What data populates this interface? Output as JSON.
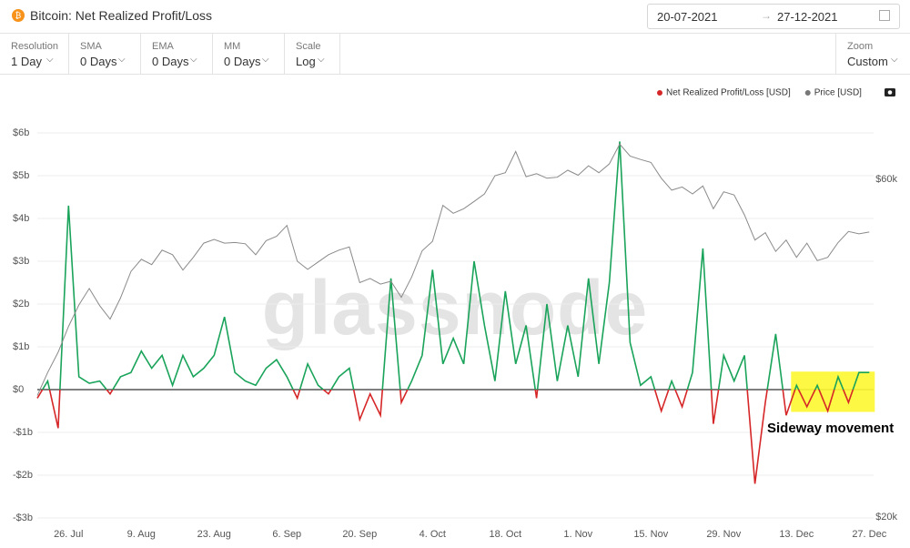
{
  "header": {
    "title": "Bitcoin: Net Realized Profit/Loss",
    "date_from": "20-07-2021",
    "date_to": "27-12-2021"
  },
  "controls": [
    {
      "label": "Resolution",
      "value": "1 Day"
    },
    {
      "label": "SMA",
      "value": "0 Days"
    },
    {
      "label": "EMA",
      "value": "0 Days"
    },
    {
      "label": "MM",
      "value": "0 Days"
    },
    {
      "label": "Scale",
      "value": "Log"
    }
  ],
  "zoom": {
    "label": "Zoom",
    "value": "Custom"
  },
  "chart_data": {
    "type": "line",
    "watermark": "glassnode",
    "annotation": "Sideway movement",
    "grid": true,
    "y2scale": "log",
    "categories": [
      null,
      null,
      null,
      "26. Jul",
      null,
      null,
      null,
      null,
      null,
      null,
      "9. Aug",
      null,
      null,
      null,
      null,
      null,
      null,
      "23. Aug",
      null,
      null,
      null,
      null,
      null,
      null,
      "6. Sep",
      null,
      null,
      null,
      null,
      null,
      null,
      "20. Sep",
      null,
      null,
      null,
      null,
      null,
      null,
      "4. Oct",
      null,
      null,
      null,
      null,
      null,
      null,
      "18. Oct",
      null,
      null,
      null,
      null,
      null,
      null,
      "1. Nov",
      null,
      null,
      null,
      null,
      null,
      null,
      "15. Nov",
      null,
      null,
      null,
      null,
      null,
      null,
      "29. Nov",
      null,
      null,
      null,
      null,
      null,
      null,
      "13. Dec",
      null,
      null,
      null,
      null,
      null,
      null,
      "27. Dec"
    ],
    "ylim": [
      -3,
      6
    ],
    "yticks": [
      {
        "value": -3,
        "label": "-$3b"
      },
      {
        "value": -2,
        "label": "-$2b"
      },
      {
        "value": -1,
        "label": "-$1b"
      },
      {
        "value": 0,
        "label": "$0"
      },
      {
        "value": 1,
        "label": "$1b"
      },
      {
        "value": 2,
        "label": "$2b"
      },
      {
        "value": 3,
        "label": "$3b"
      },
      {
        "value": 4,
        "label": "$4b"
      },
      {
        "value": 5,
        "label": "$5b"
      },
      {
        "value": 6,
        "label": "$6b"
      }
    ],
    "y2lim": [
      20000,
      70000
    ],
    "y2ticks": [
      {
        "value": 20000,
        "label": "$20k"
      },
      {
        "value": 60000,
        "label": "$60k"
      }
    ],
    "series": [
      {
        "name": "Net Realized Profit/Loss [USD]",
        "color": "#1aa35a",
        "negative_color": "#d62728",
        "legend_color": "#d62728",
        "values": [
          -0.2,
          0.2,
          -0.9,
          4.3,
          0.3,
          0.15,
          0.2,
          -0.1,
          0.3,
          0.4,
          0.9,
          0.5,
          0.8,
          0.1,
          0.8,
          0.3,
          0.5,
          0.8,
          1.7,
          0.4,
          0.2,
          0.1,
          0.5,
          0.7,
          0.3,
          -0.2,
          0.6,
          0.1,
          -0.1,
          0.3,
          0.5,
          -0.7,
          -0.1,
          -0.6,
          2.6,
          -0.3,
          0.2,
          0.8,
          2.8,
          0.6,
          1.2,
          0.6,
          3.0,
          1.5,
          0.2,
          2.3,
          0.6,
          1.5,
          -0.2,
          2.0,
          0.2,
          1.5,
          0.3,
          2.6,
          0.6,
          2.5,
          5.8,
          1.1,
          0.1,
          0.3,
          -0.5,
          0.2,
          -0.4,
          0.4,
          3.3,
          -0.8,
          0.8,
          0.2,
          0.8,
          -2.2,
          -0.3,
          1.3,
          -0.6,
          0.1,
          -0.4,
          0.1,
          -0.5,
          0.3,
          -0.3,
          0.4,
          0.4
        ]
      },
      {
        "name": "Price [USD]",
        "color": "#8a8a8a",
        "legend_color": "#777777",
        "axis": "y2",
        "values": [
          29800,
          32100,
          34300,
          37300,
          40000,
          42200,
          39900,
          38200,
          40900,
          44600,
          46400,
          45600,
          47800,
          47100,
          44800,
          46700,
          48900,
          49500,
          48900,
          49000,
          48800,
          47100,
          49300,
          50000,
          51800,
          46100,
          44900,
          46000,
          47100,
          47800,
          48300,
          43000,
          43600,
          42800,
          43200,
          41000,
          43800,
          47700,
          49200,
          55300,
          53900,
          54700,
          56000,
          57400,
          60900,
          61500,
          65900,
          60700,
          61300,
          60400,
          60600,
          62000,
          61000,
          62900,
          61500,
          63300,
          67500,
          64900,
          64200,
          63600,
          60400,
          58100,
          58700,
          57400,
          58900,
          54700,
          57800,
          57200,
          53600,
          49400,
          50600,
          47600,
          49400,
          46700,
          48900,
          46200,
          46700,
          49000,
          50800,
          50400,
          50700
        ]
      }
    ]
  }
}
